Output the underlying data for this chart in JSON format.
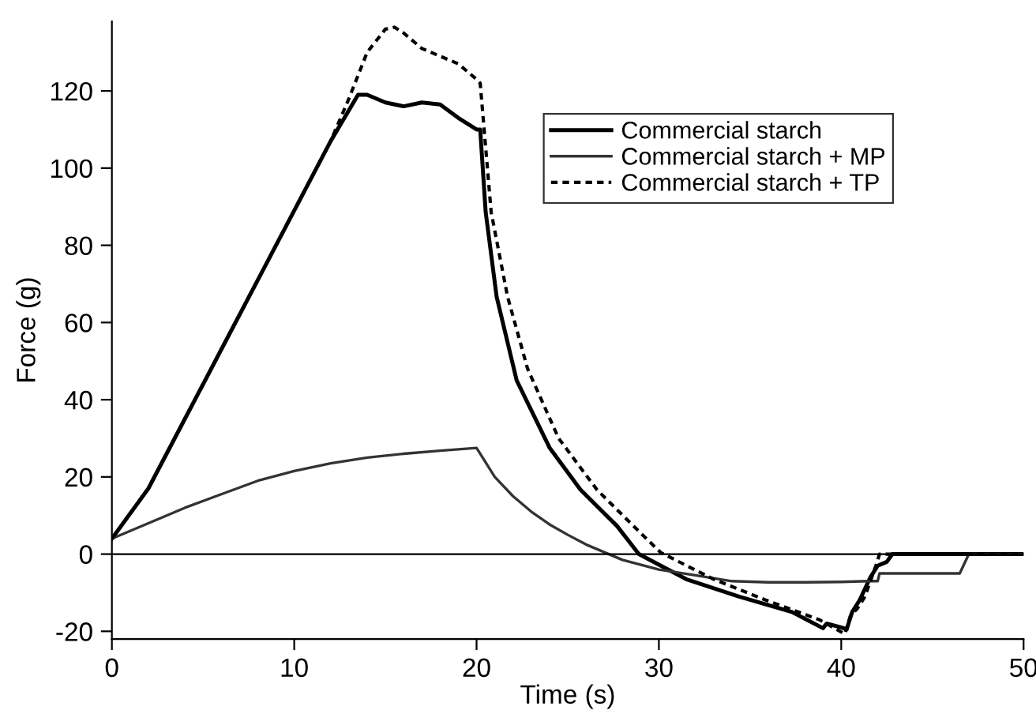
{
  "chart_data": {
    "type": "line",
    "xlabel": "Time (s)",
    "ylabel": "Force (g)",
    "xlim": [
      0,
      50
    ],
    "xticks": [
      0,
      10,
      20,
      30,
      40,
      50
    ],
    "ylim": [
      -22,
      138
    ],
    "yticks": [
      -20,
      0,
      20,
      40,
      60,
      80,
      100,
      120
    ],
    "grid": false,
    "legend": "top right",
    "marker": "none",
    "ref_lines": [
      {
        "axis": "y",
        "value": 0,
        "color": "#000000"
      }
    ],
    "series": [
      {
        "name": "Commercial starch",
        "color": "#000000",
        "line_style": "solid",
        "x": [
          0,
          2,
          4,
          6,
          8,
          10,
          12,
          13.5,
          14,
          15,
          16,
          17,
          18,
          19,
          20,
          20.2,
          20.5,
          21.1,
          22.2,
          24,
          25.7,
          27.7,
          28.9,
          31.5,
          34.4,
          37.3,
          39.0,
          39.2,
          40.0,
          40.3,
          40.6,
          41.0,
          41.3,
          41.6,
          42.0,
          42.5,
          42.8,
          50
        ],
        "values": [
          4,
          17,
          35,
          53,
          71,
          89,
          107,
          119,
          119,
          117,
          116,
          117,
          116.5,
          113,
          110,
          110,
          88.6,
          66.7,
          45,
          27.6,
          16.7,
          7.3,
          0,
          -6.5,
          -11,
          -15,
          -19.2,
          -18,
          -19,
          -19.5,
          -15,
          -12,
          -9,
          -6,
          -3,
          -2,
          0,
          0
        ]
      },
      {
        "name": "Commercial starch + MP",
        "color": "#333333",
        "line_style": "solid",
        "x": [
          0,
          2,
          4,
          6,
          8,
          10,
          12,
          14,
          16,
          18,
          20,
          21,
          22,
          23,
          24,
          25,
          26,
          27,
          28,
          30,
          32,
          34,
          36,
          38,
          40,
          41.5,
          42.0,
          42.1,
          46.5,
          46.8,
          47.0,
          50
        ],
        "values": [
          4,
          8,
          12,
          15.5,
          19,
          21.5,
          23.5,
          25,
          26,
          26.8,
          27.5,
          20,
          15,
          11,
          7.7,
          5,
          2.5,
          0.5,
          -1.5,
          -4,
          -5.5,
          -7,
          -7.3,
          -7.3,
          -7.2,
          -7,
          -7,
          -5,
          -5,
          -2,
          0,
          0
        ]
      },
      {
        "name": "Commercial starch + TP",
        "color": "#000000",
        "line_style": "dotted",
        "x": [
          0,
          2,
          4,
          6,
          8,
          10,
          11,
          12,
          13,
          14,
          15,
          15.5,
          16,
          17,
          18,
          19,
          20,
          20.2,
          20.8,
          21.7,
          22.8,
          24.5,
          26.6,
          28.6,
          30.1,
          33,
          35.8,
          38.8,
          40.2,
          40.5,
          40.9,
          41.3,
          41.6,
          41.9,
          42.1,
          50
        ],
        "values": [
          4,
          17,
          35,
          53,
          71,
          89,
          98,
          107,
          118,
          130,
          136,
          136.5,
          135,
          131,
          129,
          127,
          123,
          122,
          88.6,
          66.7,
          48,
          30,
          16.7,
          7.3,
          0.4,
          -6.5,
          -11.8,
          -17,
          -20.7,
          -16,
          -14,
          -11,
          -7,
          -3,
          0,
          0
        ]
      }
    ]
  }
}
